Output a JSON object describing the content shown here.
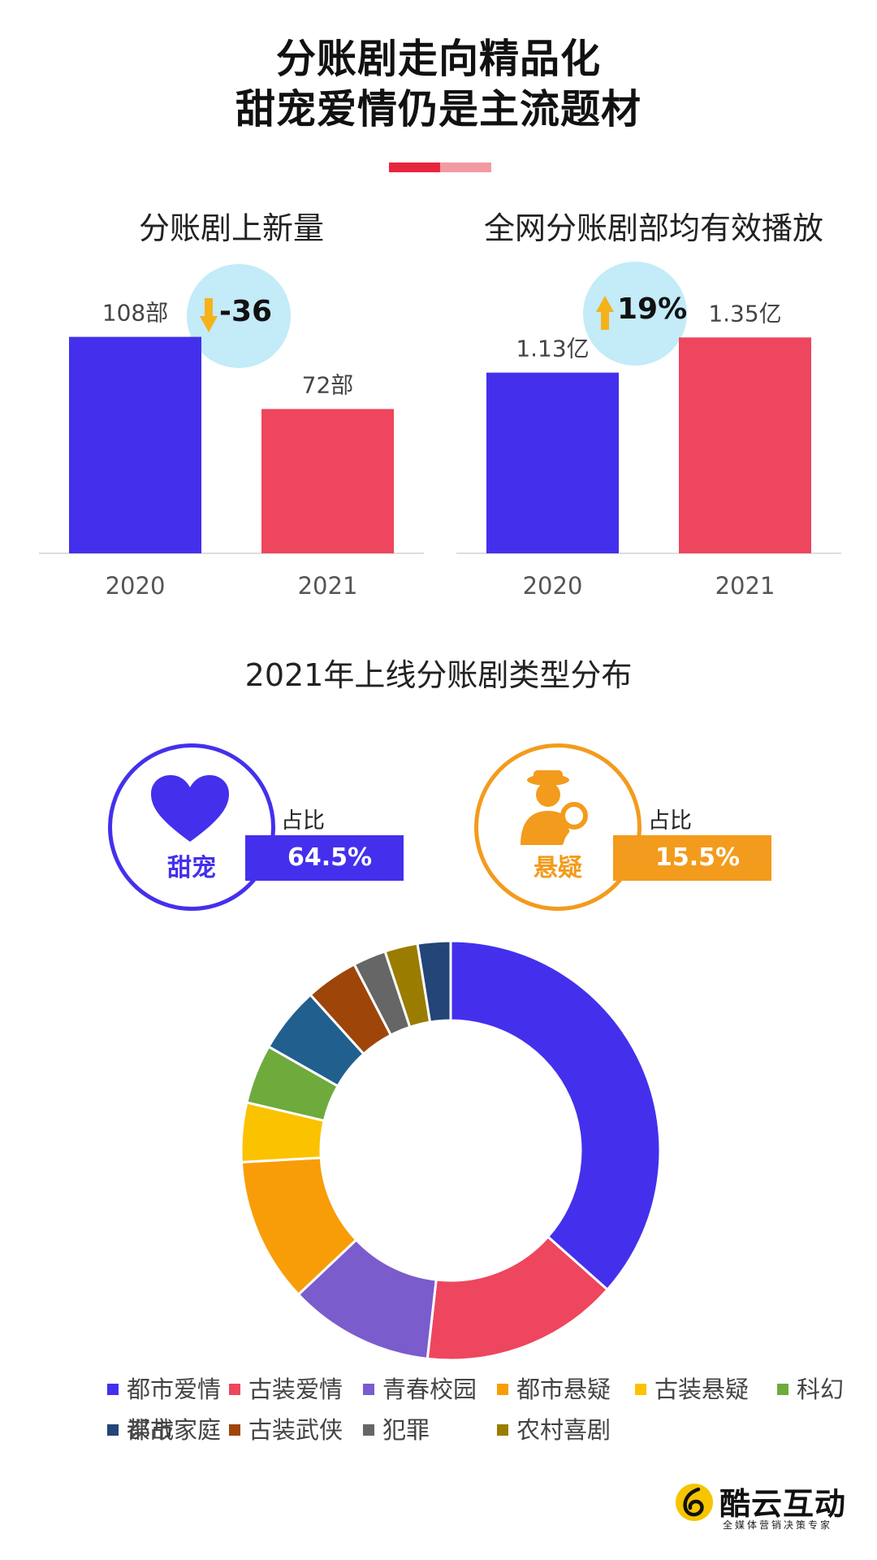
{
  "header": {
    "title_line1": "分账剧走向精品化",
    "title_line2": "甜宠爱情仍是主流题材"
  },
  "colors": {
    "purple": "#4430ec",
    "red": "#ed465e",
    "orange": "#f39b1c",
    "light_blue": "#c3ebf8",
    "arrow_yellow": "#f6b21a"
  },
  "new_releases": {
    "title": "分账剧上新量",
    "change": "-36",
    "change_direction": "down",
    "value_labels": [
      "108部",
      "72部"
    ]
  },
  "avg_plays": {
    "title": "全网分账剧部均有效播放",
    "change": "19%",
    "change_direction": "up",
    "value_labels": [
      "1.13亿",
      "1.35亿"
    ]
  },
  "distribution": {
    "title": "2021年上线分账剧类型分布",
    "highlights": [
      {
        "name": "甜宠",
        "caption": "占比",
        "share": "64.5%",
        "icon": "heart-icon",
        "color": "#4430ec"
      },
      {
        "name": "悬疑",
        "caption": "占比",
        "share": "15.5%",
        "icon": "detective-icon",
        "color": "#f39b1c"
      }
    ]
  },
  "chart_data": [
    {
      "type": "bar",
      "title": "分账剧上新量",
      "categories": [
        "2020",
        "2021"
      ],
      "values": [
        108,
        72
      ],
      "unit": "部",
      "colors": [
        "#4430ec",
        "#ed465e"
      ]
    },
    {
      "type": "bar",
      "title": "全网分账剧部均有效播放",
      "categories": [
        "2020",
        "2021"
      ],
      "values": [
        1.13,
        1.35
      ],
      "unit": "亿",
      "colors": [
        "#4430ec",
        "#ed465e"
      ]
    },
    {
      "type": "pie",
      "title": "2021年上线分账剧类型分布",
      "donut": true,
      "labels": [
        "都市爱情",
        "古装爱情",
        "青春校园",
        "都市悬疑",
        "古装悬疑",
        "科幻",
        "都市家庭",
        "古装武侠",
        "犯罪",
        "农村喜剧",
        "谍战"
      ],
      "values": [
        36,
        15,
        11,
        11,
        4.5,
        4.5,
        5,
        4,
        2.5,
        2.5,
        2.5
      ],
      "colors": [
        "#4430ec",
        "#ed465e",
        "#7a5ccd",
        "#f89d08",
        "#fbc200",
        "#6eaa3c",
        "#215f8e",
        "#9e450a",
        "#666666",
        "#9a7c00",
        "#234577"
      ],
      "legend_position": "bottom"
    }
  ],
  "logo": {
    "name": "酷云互动",
    "tagline": "全媒体营销决策专家"
  }
}
